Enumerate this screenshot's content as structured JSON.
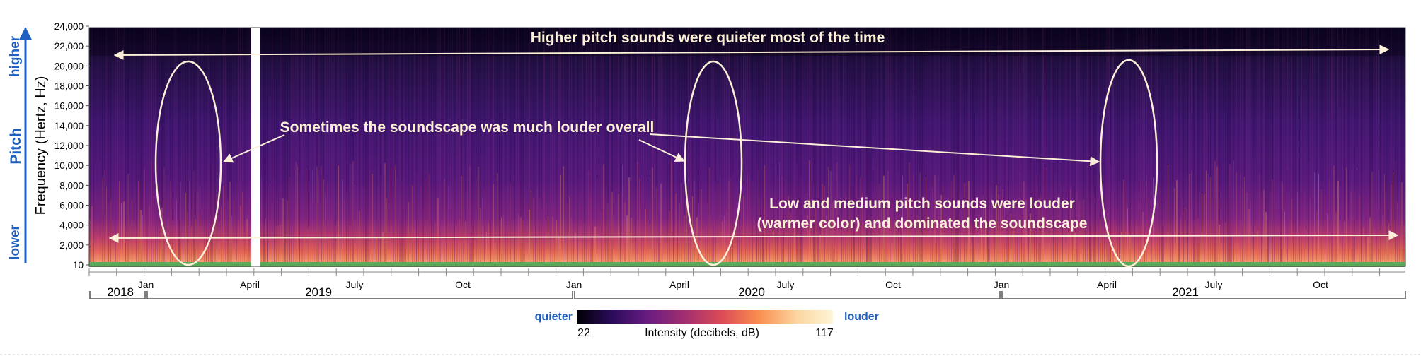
{
  "chart_data": {
    "type": "heatmap",
    "title": "",
    "ylabel": "Frequency (Hertz, Hz)",
    "y_ticks": [
      "24,000",
      "22,000",
      "20,000",
      "18,000",
      "16,000",
      "14,000",
      "12,000",
      "10,000",
      "8,000",
      "6,000",
      "4,000",
      "2,000",
      "10"
    ],
    "ylim": [
      10,
      24000
    ],
    "pitch_axis": {
      "label": "Pitch",
      "top": "higher",
      "bottom": "lower"
    },
    "x_months": [
      "Jan",
      "April",
      "July",
      "Oct",
      "Jan",
      "April",
      "July",
      "Oct",
      "Jan",
      "April",
      "July",
      "Oct"
    ],
    "x_years": [
      "2018",
      "2019",
      "2020",
      "2021"
    ],
    "colorbar": {
      "label": "Intensity  (decibels, dB)",
      "min": 22,
      "max": 117,
      "min_label": "quieter",
      "max_label": "louder",
      "colors": [
        "#000004",
        "#2c0b5c",
        "#6a1c81",
        "#a5306f",
        "#dd4c56",
        "#f98e4f",
        "#fcd6a0",
        "#fcf5d7"
      ]
    },
    "annotations": {
      "top": "Higher pitch sounds were quieter most of the time",
      "middle": "Sometimes the soundscape was much louder overall",
      "bottom_line1": "Low and medium pitch sounds were louder",
      "bottom_line2": "(warmer color) and dominated the soundscape"
    }
  }
}
